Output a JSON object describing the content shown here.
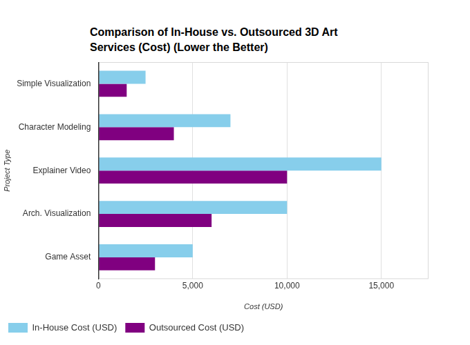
{
  "chart_data": {
    "type": "bar",
    "title": "Comparison of In-House vs. Outsourced 3D Art Services (Cost) (Lower the Better)",
    "orientation": "horizontal",
    "x_label": "Cost (USD)",
    "y_label": "Project Type",
    "categories": [
      "Simple Visualization",
      "Character Modeling",
      "Explainer Video",
      "Arch. Visualization",
      "Game Asset"
    ],
    "series": [
      {
        "name": "In-House Cost (USD)",
        "color": "#87ceeb",
        "values": [
          2500,
          7000,
          15000,
          10000,
          5000
        ]
      },
      {
        "name": "Outsourced Cost (USD)",
        "color": "#800080",
        "values": [
          1500,
          4000,
          10000,
          6000,
          3000
        ]
      }
    ],
    "xlim": [
      0,
      17500
    ],
    "xticks": [
      0,
      {
        "value": 5000,
        "label": "5,000"
      },
      {
        "value": 10000,
        "label": "10,000"
      },
      {
        "value": 15000,
        "label": "15,000"
      }
    ],
    "grid": true,
    "legend": "bottom"
  }
}
